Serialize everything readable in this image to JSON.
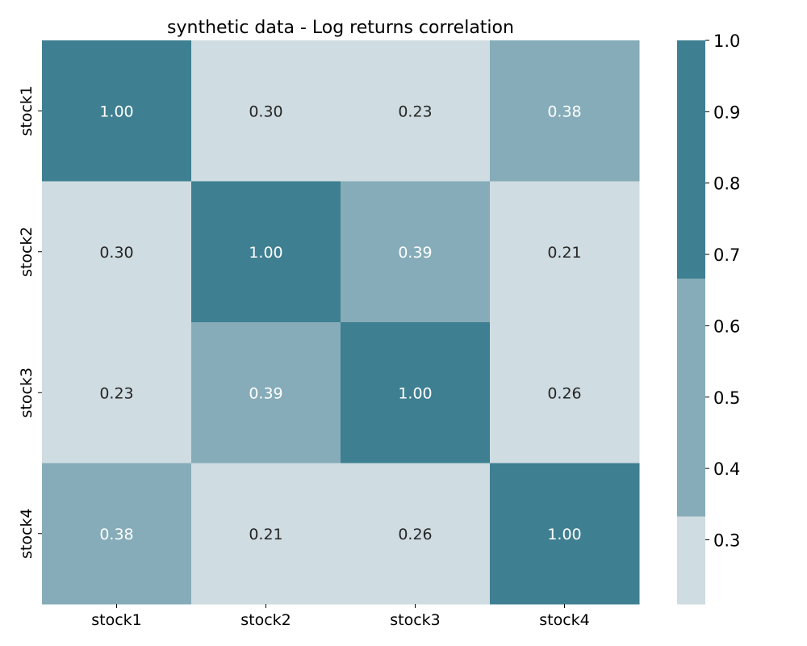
{
  "chart_data": {
    "type": "heatmap",
    "title": "synthetic data - Log returns correlation",
    "x_categories": [
      "stock1",
      "stock2",
      "stock3",
      "stock4"
    ],
    "y_categories": [
      "stock1",
      "stock2",
      "stock3",
      "stock4"
    ],
    "values": [
      [
        1.0,
        0.3,
        0.23,
        0.38
      ],
      [
        0.3,
        1.0,
        0.39,
        0.21
      ],
      [
        0.23,
        0.39,
        1.0,
        0.26
      ],
      [
        0.38,
        0.21,
        0.26,
        1.0
      ]
    ],
    "value_format": "0.00",
    "colorbar": {
      "range": [
        0.21,
        1.0
      ],
      "ticks": [
        0.3,
        0.4,
        0.5,
        0.6,
        0.7,
        0.8,
        0.9,
        1.0
      ],
      "tick_labels": [
        "0.3",
        "0.4",
        "0.5",
        "0.6",
        "0.7",
        "0.8",
        "0.9",
        "1.0"
      ],
      "bins": [
        {
          "from": 0.21,
          "to": 0.3333,
          "color": "#cfdce1"
        },
        {
          "from": 0.3333,
          "to": 0.6667,
          "color": "#85acb8"
        },
        {
          "from": 0.6667,
          "to": 1.0,
          "color": "#3e7f91"
        }
      ]
    },
    "annotation_colors": {
      "dark_text": "#262626",
      "light_text": "#ffffff"
    }
  }
}
